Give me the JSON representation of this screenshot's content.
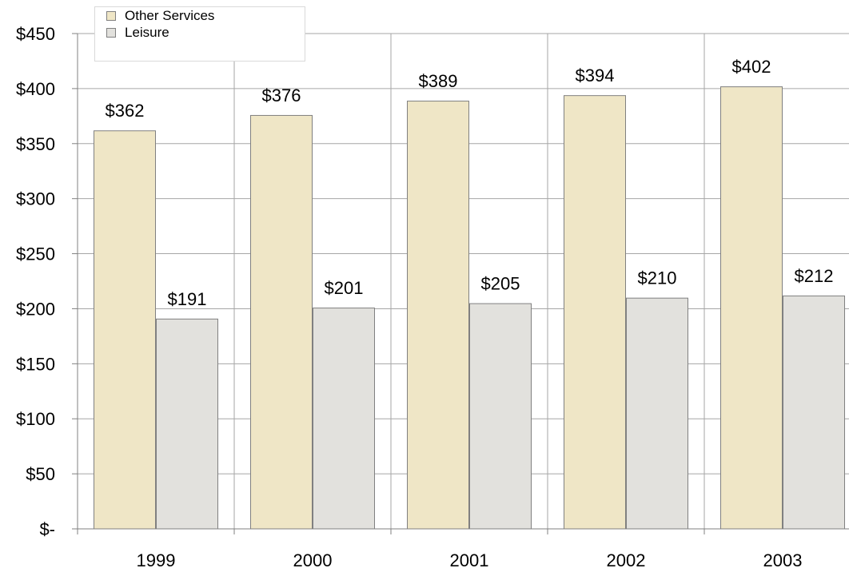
{
  "chart_data": {
    "type": "bar",
    "categories": [
      "1999",
      "2000",
      "2001",
      "2002",
      "2003"
    ],
    "series": [
      {
        "name": "Other Services",
        "values": [
          362,
          376,
          389,
          394,
          402
        ],
        "color": "#efe6c6"
      },
      {
        "name": "Leisure",
        "values": [
          191,
          201,
          205,
          210,
          212
        ],
        "color": "#e2e1dd"
      }
    ],
    "data_labels": {
      "Other Services": [
        "$362",
        "$376",
        "$389",
        "$394",
        "$402"
      ],
      "Leisure": [
        "$191",
        "$201",
        "$205",
        "$210",
        "$212"
      ]
    },
    "ylim": [
      0,
      450
    ],
    "yticks": [
      0,
      50,
      100,
      150,
      200,
      250,
      300,
      350,
      400,
      450
    ],
    "ytick_labels": [
      "$-",
      "$50",
      "$100",
      "$150",
      "$200",
      "$250",
      "$300",
      "$350",
      "$400",
      "$450"
    ],
    "grid": true,
    "legend_position": "top-left",
    "title": "",
    "xlabel": "",
    "ylabel": ""
  }
}
